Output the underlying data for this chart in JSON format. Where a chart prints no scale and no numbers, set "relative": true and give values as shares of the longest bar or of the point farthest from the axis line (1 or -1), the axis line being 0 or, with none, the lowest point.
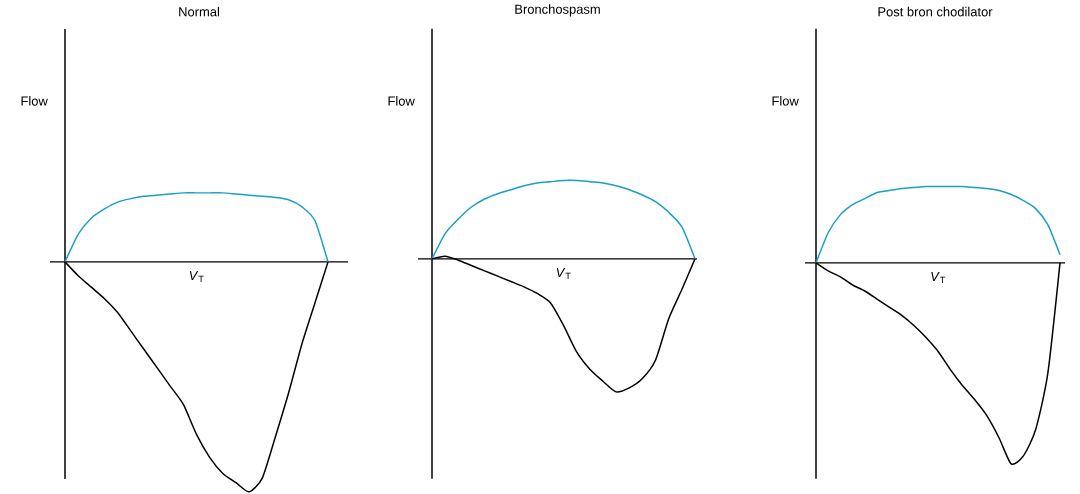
{
  "chart_data": [
    {
      "type": "line",
      "relative": true,
      "title": "Normal",
      "xlabel": "*V*$_{T}$",
      "ylabel": "Flow",
      "categories": [
        null,
        null,
        null,
        null,
        null,
        null,
        null,
        null,
        null,
        null,
        null,
        null,
        null,
        null,
        null,
        null,
        null,
        null,
        null,
        null,
        null
      ],
      "series": [
        {
          "color": "#1a9fc8",
          "values": [
            0,
            0.12,
            0.19,
            0.23,
            0.26,
            0.275,
            0.285,
            0.29,
            0.295,
            0.3,
            0.3,
            0.3,
            0.3,
            0.295,
            0.29,
            0.285,
            0.28,
            0.27,
            0.24,
            0.18,
            0
          ]
        },
        {
          "color": "#000000",
          "values": [
            0,
            -0.06,
            -0.11,
            -0.16,
            -0.22,
            -0.3,
            -0.38,
            -0.46,
            -0.54,
            -0.62,
            -0.75,
            -0.85,
            -0.92,
            -0.96,
            -1.0,
            -0.94,
            -0.76,
            -0.57,
            -0.36,
            -0.18,
            0
          ]
        }
      ]
    },
    {
      "type": "line",
      "relative": true,
      "title": "Bronchospasm",
      "xlabel": "*V*$_{T}$",
      "ylabel": "Flow",
      "categories": [
        null,
        null,
        null,
        null,
        null,
        null,
        null,
        null,
        null,
        null,
        null,
        null,
        null,
        null,
        null,
        null,
        null,
        null,
        null,
        null,
        null
      ],
      "series": [
        {
          "color": "#1a9fc8",
          "values": [
            0,
            0.19,
            0.3,
            0.39,
            0.45,
            0.49,
            0.52,
            0.55,
            0.57,
            0.58,
            0.59,
            0.59,
            0.58,
            0.57,
            0.55,
            0.52,
            0.48,
            0.43,
            0.35,
            0.24,
            0
          ]
        },
        {
          "color": "#000000",
          "values": [
            0,
            0.02,
            -0.01,
            -0.05,
            -0.09,
            -0.13,
            -0.17,
            -0.21,
            -0.26,
            -0.33,
            -0.5,
            -0.7,
            -0.83,
            -0.92,
            -1.0,
            -0.97,
            -0.9,
            -0.76,
            -0.45,
            -0.23,
            0
          ]
        }
      ]
    },
    {
      "type": "line",
      "relative": true,
      "title": "Post bron chodilator",
      "xlabel": "*V*$_{T}$",
      "ylabel": "Flow",
      "categories": [
        null,
        null,
        null,
        null,
        null,
        null,
        null,
        null,
        null,
        null,
        null,
        null,
        null,
        null,
        null,
        null,
        null,
        null,
        null,
        null,
        null
      ],
      "series": [
        {
          "color": "#1a9fc8",
          "values": [
            0,
            0.15,
            0.24,
            0.29,
            0.32,
            0.35,
            0.36,
            0.37,
            0.375,
            0.38,
            0.38,
            0.38,
            0.38,
            0.375,
            0.37,
            0.36,
            0.34,
            0.31,
            0.27,
            0.19,
            0.04
          ]
        },
        {
          "color": "#000000",
          "values": [
            0,
            -0.04,
            -0.07,
            -0.11,
            -0.14,
            -0.18,
            -0.22,
            -0.26,
            -0.31,
            -0.37,
            -0.44,
            -0.53,
            -0.61,
            -0.68,
            -0.76,
            -0.87,
            -1.0,
            -0.96,
            -0.83,
            -0.55,
            0
          ]
        }
      ]
    }
  ]
}
